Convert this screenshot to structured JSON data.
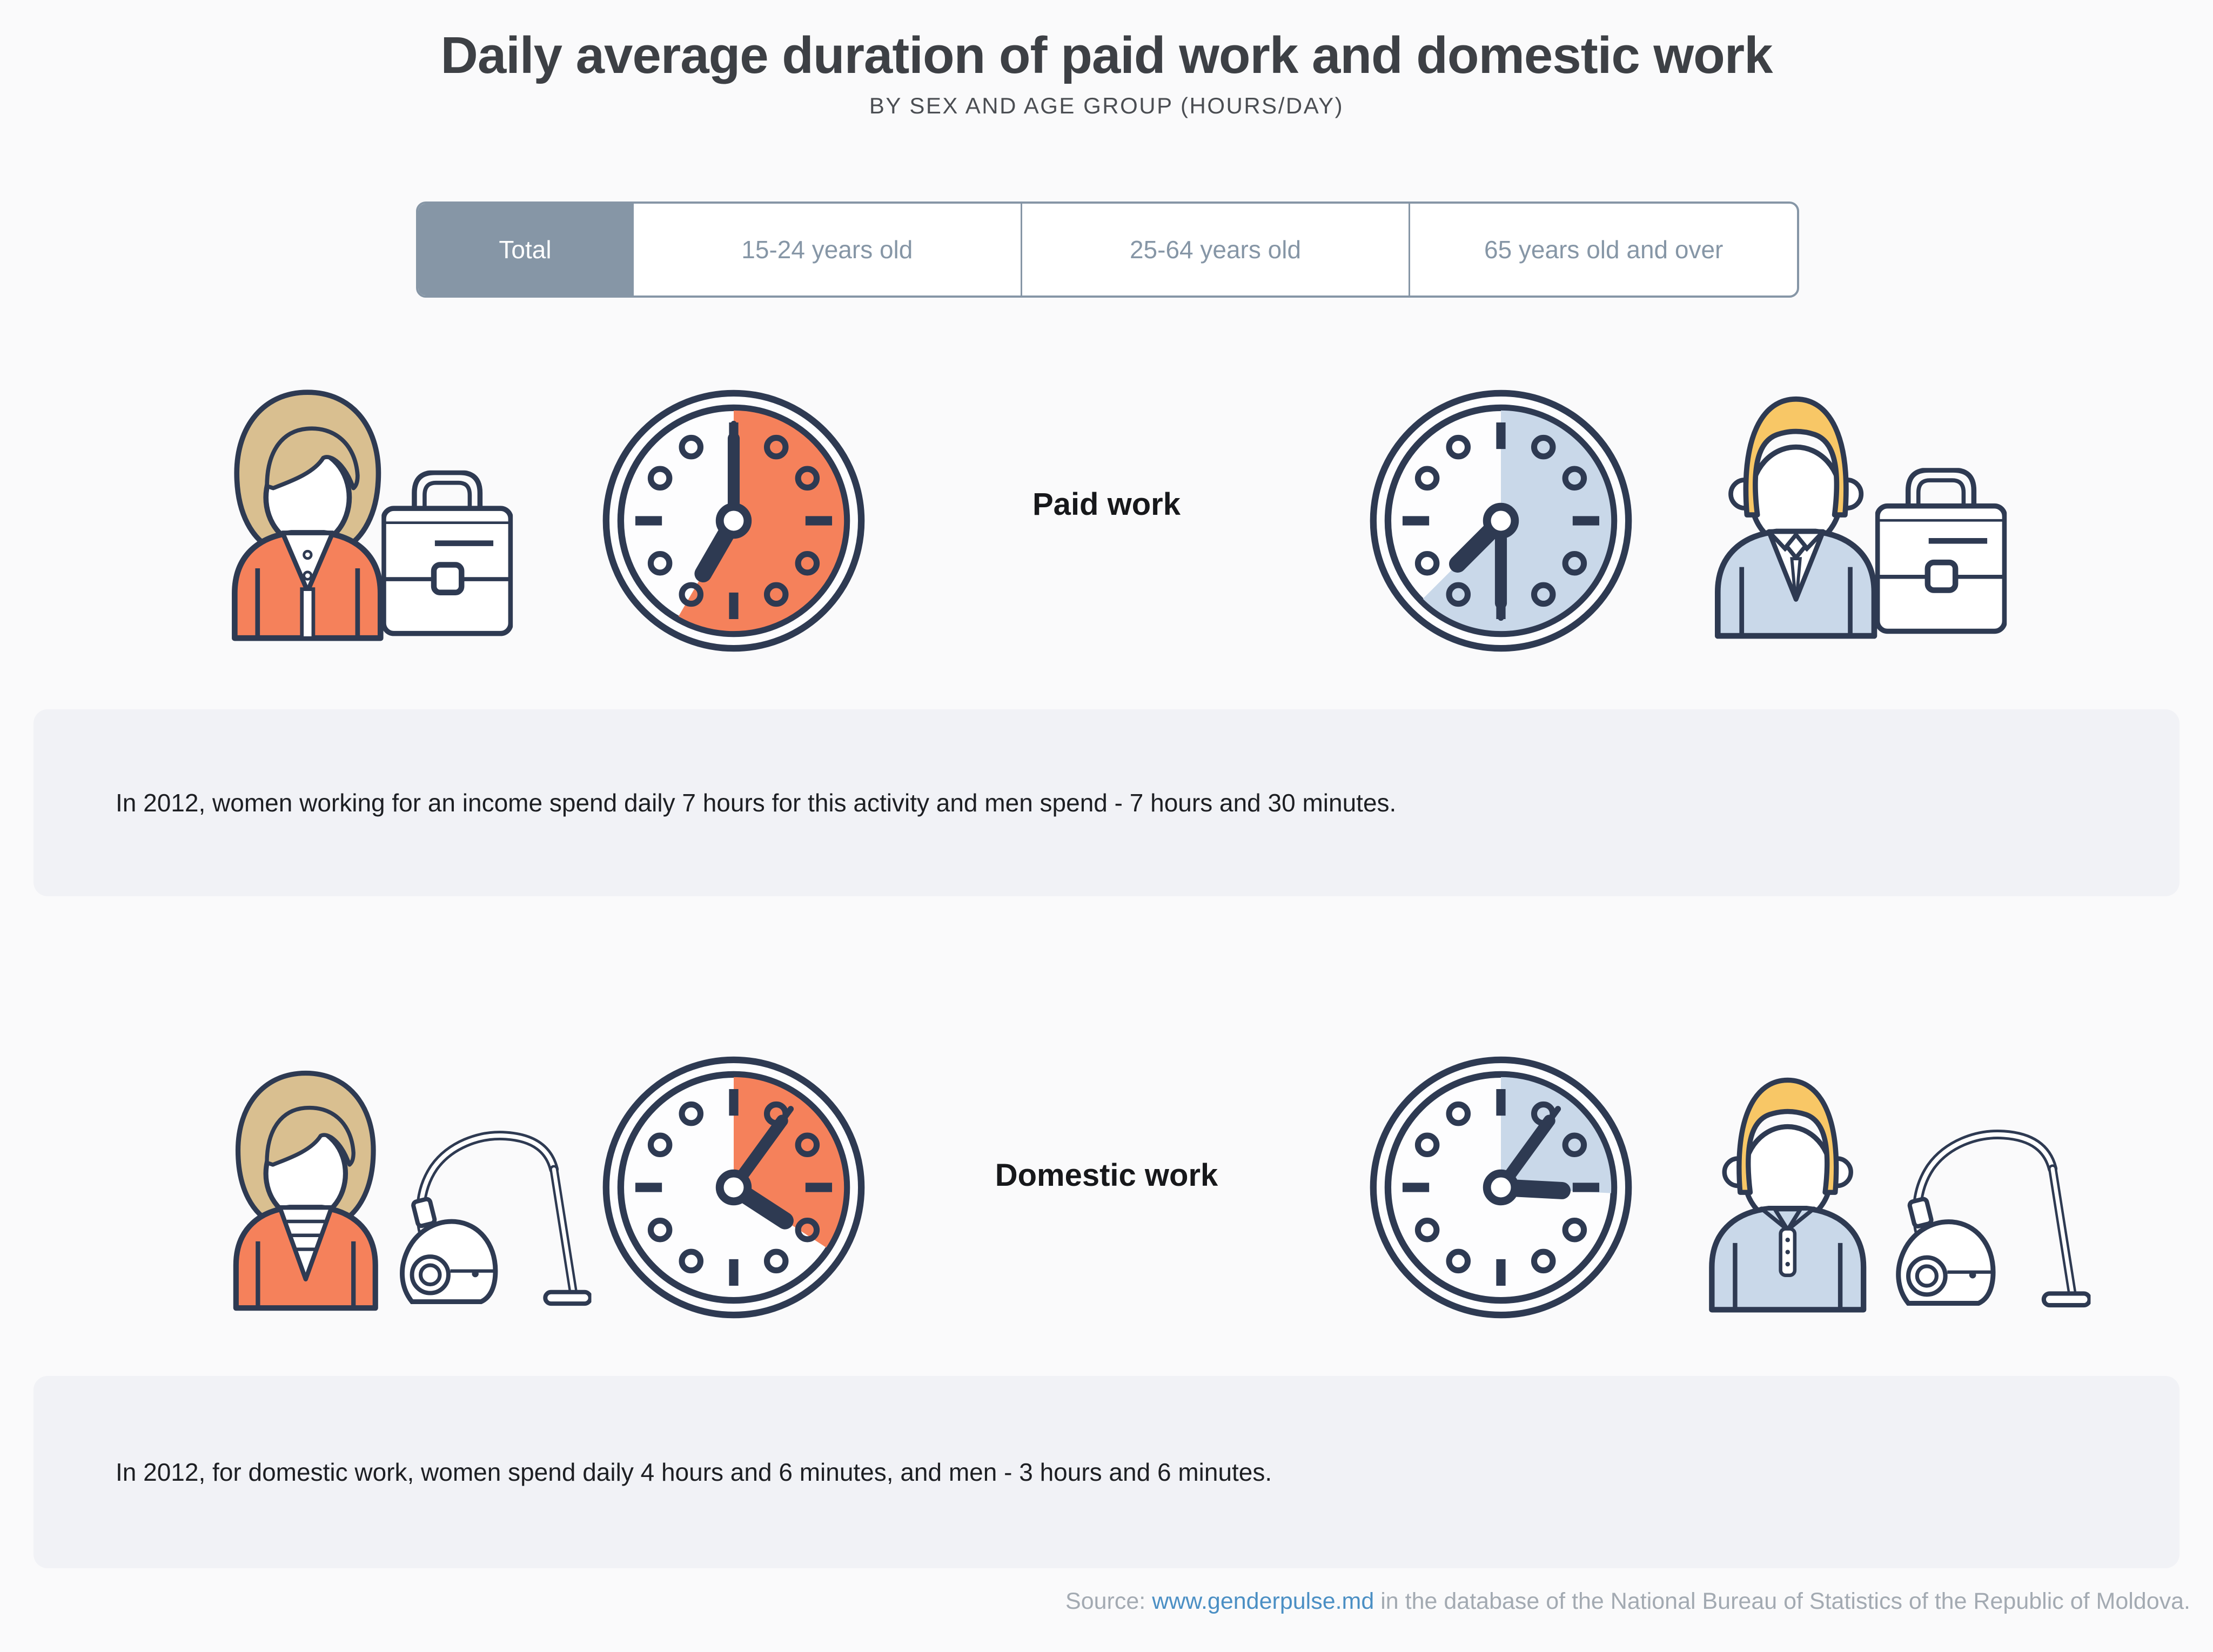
{
  "page": {
    "title": "Daily average duration of paid work and domestic work",
    "subtitle": "BY SEX AND AGE GROUP (HOURS/DAY)"
  },
  "tabs": [
    {
      "label": "Total",
      "selected": true
    },
    {
      "label": "15-24 years old",
      "selected": false
    },
    {
      "label": "25-64 years old",
      "selected": false
    },
    {
      "label": "65 years old and over",
      "selected": false
    }
  ],
  "sections": [
    {
      "label": "Paid work",
      "women": {
        "hours": 7,
        "minutes": 0,
        "clock_fill": "#f5815b"
      },
      "men": {
        "hours": 7,
        "minutes": 30,
        "clock_fill": "#c9d8e9"
      },
      "description": "In 2012, women working for an income spend daily 7 hours for this activity and men spend - 7 hours and 30 minutes."
    },
    {
      "label": "Domestic work",
      "women": {
        "hours": 4,
        "minutes": 6,
        "clock_fill": "#f5815b"
      },
      "men": {
        "hours": 3,
        "minutes": 6,
        "clock_fill": "#c9d8e9"
      },
      "description": "In 2012, for domestic work, women spend daily 4 hours and 6 minutes, and men - 3 hours and 6 minutes."
    }
  ],
  "footer": {
    "prefix": "Source: ",
    "link": "www.genderpulse.md",
    "suffix": " in the database of the National Bureau of Statistics of the Republic of Moldova."
  },
  "colors": {
    "navy": "#2e3a52",
    "orange": "#f5815b",
    "light_blue": "#c9d8e9",
    "hair_tan": "#d9bf90",
    "hair_yellow": "#f8c766",
    "tab_gray_blue": "#8696a6",
    "page_background": "#fafafb",
    "block_background": "#f1f2f6",
    "link_blue": "#4b8fc4",
    "footer_gray": "#a3aab2"
  },
  "chart_data": {
    "type": "pie",
    "variant": "clock-pictogram-infographic",
    "title": "Daily average duration of paid work and domestic work",
    "subtitle": "BY SEX AND AGE GROUP (HOURS/DAY)",
    "selected_filter": "Total",
    "filters": [
      "Total",
      "15-24 years old",
      "25-64 years old",
      "65 years old and over"
    ],
    "unit": "hours per day",
    "clock_dial_hours": 12,
    "year_shown": 2012,
    "categories": [
      "Paid work",
      "Domestic work"
    ],
    "series": [
      {
        "name": "Women",
        "color": "#f5815b",
        "values_hours": [
          7.0,
          4.1
        ],
        "labels": [
          "7 hours",
          "4 hours and 6 minutes"
        ]
      },
      {
        "name": "Men",
        "color": "#c9d8e9",
        "values_hours": [
          7.5,
          3.1
        ],
        "labels": [
          "7 hours and 30 minutes",
          "3 hours and 6 minutes"
        ]
      }
    ],
    "legend_position": "none",
    "grid": false
  }
}
